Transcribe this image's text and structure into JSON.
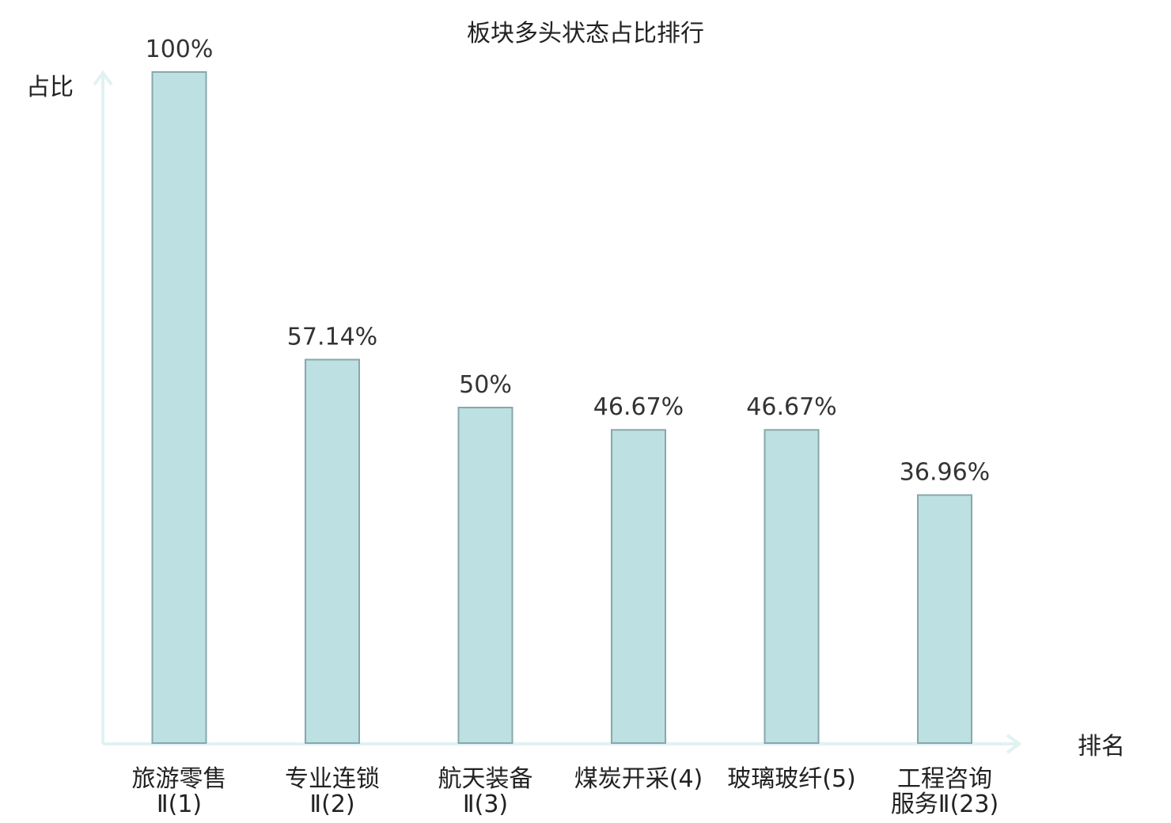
{
  "chart_data": {
    "type": "bar",
    "title": "板块多头状态占比排行",
    "xlabel": "排名",
    "ylabel": "占比",
    "ylim": [
      0,
      100
    ],
    "grid": false,
    "colors": {
      "bar_fill": "#bde0e3",
      "bar_stroke": "#87a7ac",
      "axis": "#e0f2f1",
      "highlight_text": "#e02020"
    },
    "categories": [
      {
        "line1": "旅游零售",
        "line2": "Ⅱ(1)",
        "highlight": false
      },
      {
        "line1": "专业连锁",
        "line2": "Ⅱ(2)",
        "highlight": false
      },
      {
        "line1": "航天装备",
        "line2": "Ⅱ(3)",
        "highlight": false
      },
      {
        "line1": "煤炭开采(4)",
        "line2": "",
        "highlight": false
      },
      {
        "line1": "玻璃玻纤(5)",
        "line2": "",
        "highlight": false
      },
      {
        "line1": "工程咨询",
        "line2": "服务Ⅱ(23)",
        "highlight": true
      }
    ],
    "values": [
      100,
      57.14,
      50,
      46.67,
      46.67,
      36.96
    ],
    "value_labels": [
      "100%",
      "57.14%",
      "50%",
      "46.67%",
      "46.67%",
      "36.96%"
    ]
  }
}
